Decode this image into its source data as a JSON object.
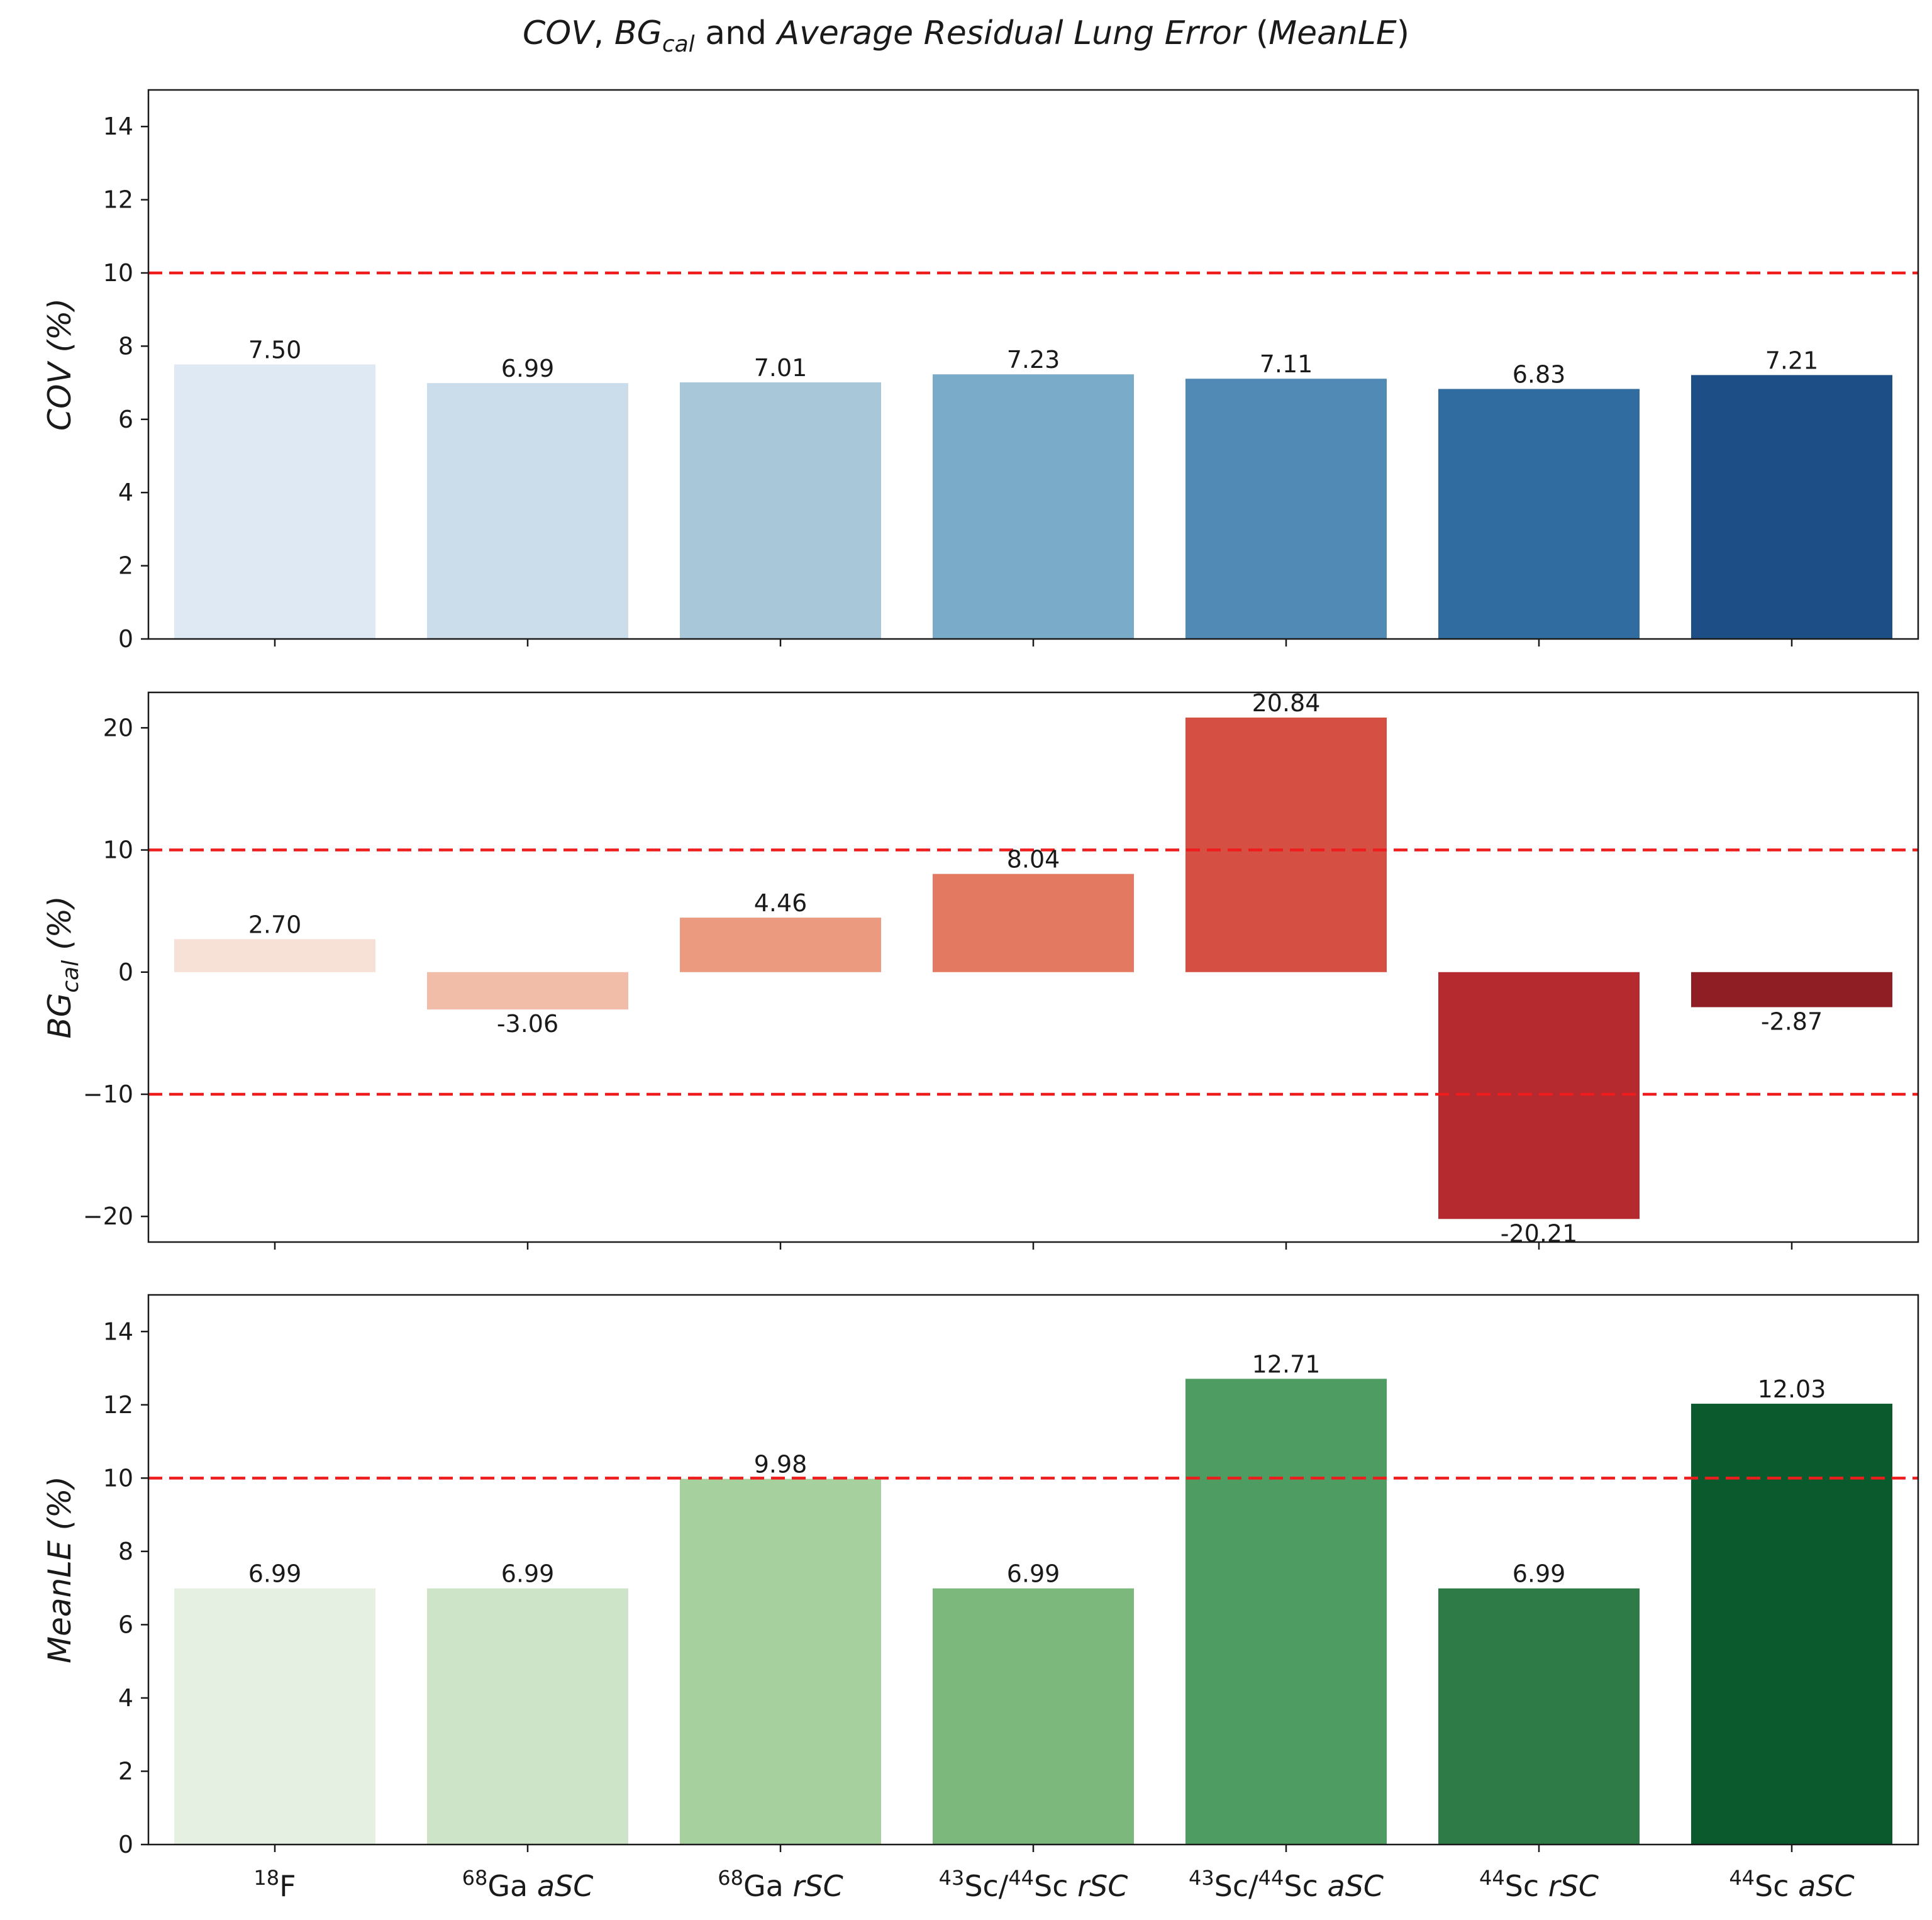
{
  "figure": {
    "title_parts": [
      {
        "text": "COV",
        "style": "italic"
      },
      {
        "text": ", ",
        "style": "normal"
      },
      {
        "text": "BG",
        "style": "italic"
      },
      {
        "text": "cal",
        "style": "italic-sub"
      },
      {
        "text": " and ",
        "style": "normal"
      },
      {
        "text": "Average Residual Lung Error",
        "style": "italic"
      },
      {
        "text": " (",
        "style": "normal"
      },
      {
        "text": "MeanLE",
        "style": "italic"
      },
      {
        "text": ")",
        "style": "normal"
      }
    ]
  },
  "categories": [
    {
      "sup": "18",
      "base": "F",
      "mode": ""
    },
    {
      "sup": "68",
      "base": "Ga",
      "mode": "aSC"
    },
    {
      "sup": "68",
      "base": "Ga",
      "mode": "rSC"
    },
    {
      "sup": "43",
      "base": "Sc/",
      "sup2": "44",
      "base2": "Sc",
      "mode": "rSC"
    },
    {
      "sup": "43",
      "base": "Sc/",
      "sup2": "44",
      "base2": "Sc",
      "mode": "aSC"
    },
    {
      "sup": "44",
      "base": "Sc",
      "mode": "rSC"
    },
    {
      "sup": "44",
      "base": "Sc",
      "mode": "aSC"
    }
  ],
  "chart_data": [
    {
      "type": "bar",
      "name": "cov",
      "ylabel": "COV",
      "ylabel_sub": "",
      "ylabel_unit": "(%)",
      "values": [
        7.5,
        6.99,
        7.01,
        7.23,
        7.11,
        6.83,
        7.21
      ],
      "value_labels": [
        "7.50",
        "6.99",
        "7.01",
        "7.23",
        "7.11",
        "6.83",
        "7.21"
      ],
      "ylim": [
        0,
        15
      ],
      "yticks": [
        0,
        2,
        4,
        6,
        8,
        10,
        12,
        14
      ],
      "ytick_labels": [
        "0",
        "2",
        "4",
        "6",
        "8",
        "10",
        "12",
        "14"
      ],
      "reference_lines": [
        10
      ],
      "colors": [
        "#dee9f4",
        "#cbdcea",
        "#a8c8d9",
        "#7aabc8",
        "#528ab6",
        "#306ca0",
        "#1d4e86"
      ],
      "show_xtick_labels": false
    },
    {
      "type": "bar",
      "name": "bgcal",
      "ylabel": "BG",
      "ylabel_sub": "cal",
      "ylabel_unit": "(%)",
      "values": [
        2.7,
        -3.06,
        4.46,
        8.04,
        20.84,
        -20.21,
        -2.87
      ],
      "value_labels": [
        "2.70",
        "-3.06",
        "4.46",
        "8.04",
        "20.84",
        "-20.21",
        "-2.87"
      ],
      "ylim": [
        -22.1,
        22.9
      ],
      "yticks": [
        -20,
        -10,
        0,
        10,
        20
      ],
      "ytick_labels": [
        "−20",
        "−10",
        "0",
        "10",
        "20"
      ],
      "reference_lines": [
        10,
        -10
      ],
      "colors": [
        "#f7e0d5",
        "#f1bca8",
        "#eb9a7f",
        "#e37961",
        "#d54f42",
        "#b52a2e",
        "#8f1d24"
      ],
      "show_xtick_labels": false
    },
    {
      "type": "bar",
      "name": "meanle",
      "ylabel": "MeanLE",
      "ylabel_sub": "",
      "ylabel_unit": "(%)",
      "values": [
        6.99,
        6.99,
        9.98,
        6.99,
        12.71,
        6.99,
        12.03
      ],
      "value_labels": [
        "6.99",
        "6.99",
        "9.98",
        "6.99",
        "12.71",
        "6.99",
        "12.03"
      ],
      "ylim": [
        0,
        15
      ],
      "yticks": [
        0,
        2,
        4,
        6,
        8,
        10,
        12,
        14
      ],
      "ytick_labels": [
        "0",
        "2",
        "4",
        "6",
        "8",
        "10",
        "12",
        "14"
      ],
      "reference_lines": [
        10
      ],
      "colors": [
        "#e5f0e3",
        "#cde4c8",
        "#a7d09f",
        "#7cb87c",
        "#4f9c62",
        "#2e7b48",
        "#0b5a2e"
      ],
      "show_xtick_labels": true
    }
  ],
  "reference_line_color": "#ee1c1c"
}
